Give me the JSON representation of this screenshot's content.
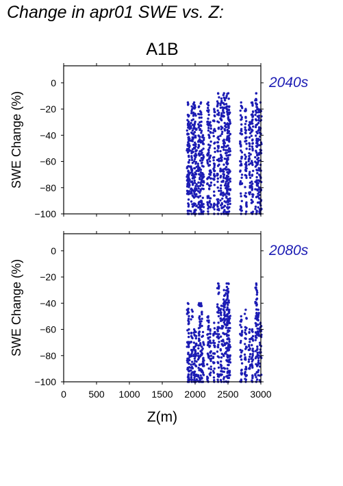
{
  "figure": {
    "title": "Change in apr01 SWE vs. Z:",
    "scenario": "A1B"
  },
  "colors": {
    "points": "#1c1cb4",
    "period_label": "#1c1cb4",
    "axes": "#000000"
  },
  "chart_data": [
    {
      "type": "scatter",
      "period_label": "2040s",
      "xlabel": "",
      "ylabel": "SWE Change (%)",
      "xlim": [
        0,
        3000
      ],
      "ylim": [
        -100,
        13
      ],
      "xticks": [
        0,
        500,
        1000,
        1500,
        2000,
        2500,
        3000
      ],
      "yticks": [
        0,
        -20,
        -40,
        -60,
        -80,
        -100
      ],
      "x_tick_labels_shown": false,
      "grid": false,
      "columns": [
        {
          "x": 1890,
          "y_max": -15,
          "y_min": -100
        },
        {
          "x": 1905,
          "y_max": -25,
          "y_min": -100
        },
        {
          "x": 1950,
          "y_max": -18,
          "y_min": -100
        },
        {
          "x": 1985,
          "y_max": -15,
          "y_min": -100
        },
        {
          "x": 2010,
          "y_max": -25,
          "y_min": -100
        },
        {
          "x": 2060,
          "y_max": -18,
          "y_min": -100
        },
        {
          "x": 2090,
          "y_max": -15,
          "y_min": -100
        },
        {
          "x": 2120,
          "y_max": -40,
          "y_min": -100
        },
        {
          "x": 2200,
          "y_max": -15,
          "y_min": -100
        },
        {
          "x": 2230,
          "y_max": -30,
          "y_min": -95
        },
        {
          "x": 2290,
          "y_max": -20,
          "y_min": -100
        },
        {
          "x": 2350,
          "y_max": -8,
          "y_min": -100
        },
        {
          "x": 2400,
          "y_max": -12,
          "y_min": -100
        },
        {
          "x": 2440,
          "y_max": -8,
          "y_min": -100
        },
        {
          "x": 2480,
          "y_max": -10,
          "y_min": -100
        },
        {
          "x": 2505,
          "y_max": -8,
          "y_min": -100
        },
        {
          "x": 2520,
          "y_max": -18,
          "y_min": -95
        },
        {
          "x": 2700,
          "y_max": -15,
          "y_min": -100
        },
        {
          "x": 2770,
          "y_max": -20,
          "y_min": -100
        },
        {
          "x": 2830,
          "y_max": -30,
          "y_min": -85
        },
        {
          "x": 2870,
          "y_max": -15,
          "y_min": -100
        },
        {
          "x": 2930,
          "y_max": -8,
          "y_min": -100
        },
        {
          "x": 2960,
          "y_max": -20,
          "y_min": -95
        },
        {
          "x": 2995,
          "y_max": -15,
          "y_min": -100
        }
      ]
    },
    {
      "type": "scatter",
      "period_label": "2080s",
      "xlabel": "Z(m)",
      "ylabel": "SWE Change (%)",
      "xlim": [
        0,
        3000
      ],
      "ylim": [
        -100,
        13
      ],
      "xticks": [
        0,
        500,
        1000,
        1500,
        2000,
        2500,
        3000
      ],
      "yticks": [
        0,
        -20,
        -40,
        -60,
        -80,
        -100
      ],
      "x_tick_labels_shown": true,
      "grid": false,
      "columns": [
        {
          "x": 1890,
          "y_max": -40,
          "y_min": -100
        },
        {
          "x": 1905,
          "y_max": -60,
          "y_min": -100
        },
        {
          "x": 1950,
          "y_max": -45,
          "y_min": -100
        },
        {
          "x": 1985,
          "y_max": -60,
          "y_min": -100
        },
        {
          "x": 2010,
          "y_max": -62,
          "y_min": -100
        },
        {
          "x": 2060,
          "y_max": -40,
          "y_min": -100
        },
        {
          "x": 2090,
          "y_max": -40,
          "y_min": -100
        },
        {
          "x": 2120,
          "y_max": -62,
          "y_min": -100
        },
        {
          "x": 2200,
          "y_max": -50,
          "y_min": -100
        },
        {
          "x": 2230,
          "y_max": -60,
          "y_min": -95
        },
        {
          "x": 2290,
          "y_max": -55,
          "y_min": -100
        },
        {
          "x": 2350,
          "y_max": -25,
          "y_min": -100
        },
        {
          "x": 2400,
          "y_max": -42,
          "y_min": -100
        },
        {
          "x": 2440,
          "y_max": -30,
          "y_min": -100
        },
        {
          "x": 2480,
          "y_max": -25,
          "y_min": -100
        },
        {
          "x": 2505,
          "y_max": -25,
          "y_min": -100
        },
        {
          "x": 2520,
          "y_max": -45,
          "y_min": -95
        },
        {
          "x": 2700,
          "y_max": -50,
          "y_min": -100
        },
        {
          "x": 2770,
          "y_max": -45,
          "y_min": -100
        },
        {
          "x": 2830,
          "y_max": -60,
          "y_min": -90
        },
        {
          "x": 2870,
          "y_max": -60,
          "y_min": -100
        },
        {
          "x": 2930,
          "y_max": -25,
          "y_min": -100
        },
        {
          "x": 2960,
          "y_max": -45,
          "y_min": -95
        },
        {
          "x": 2995,
          "y_max": -55,
          "y_min": -100
        }
      ]
    }
  ]
}
